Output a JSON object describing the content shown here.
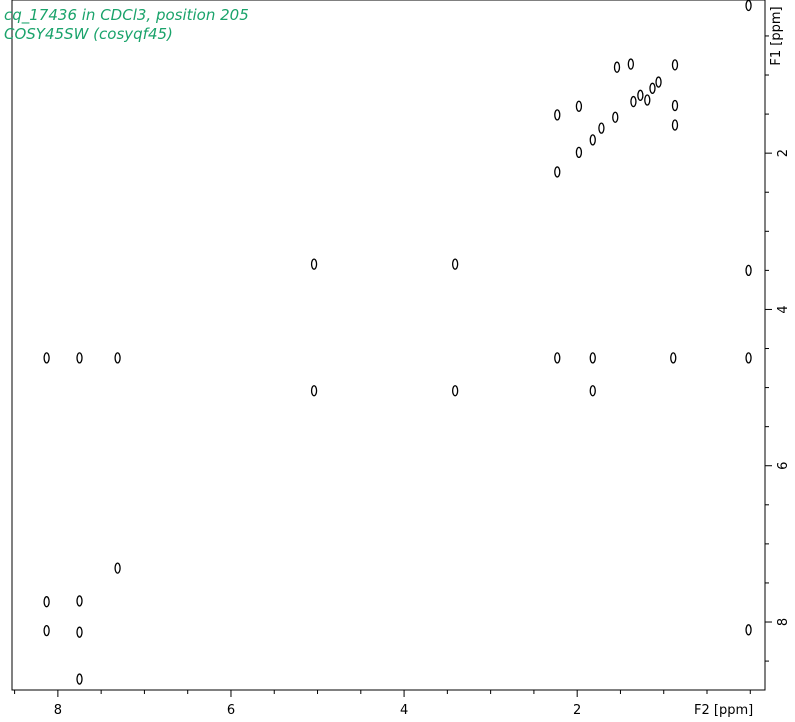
{
  "chart_data": {
    "type": "scatter",
    "title": "cq_17436 in CDCl3, position 205",
    "subtitle": "COSY45SW (cosyqf45)",
    "x_label": "F2 [ppm]",
    "y_label": "F1 [ppm]",
    "color": "#000000",
    "xlim": [
      8.53,
      -0.17
    ],
    "ylim": [
      0.04,
      8.87
    ],
    "xticks": [
      2,
      4,
      6,
      8
    ],
    "yticks": [
      2,
      4,
      6,
      8
    ],
    "xminorticks": [
      0,
      0.5,
      1,
      1.5,
      2.5,
      3,
      3.5,
      4.5,
      5,
      5.5,
      6.5,
      7,
      7.5,
      8.5
    ],
    "yminorticks": [
      0.5,
      1,
      1.5,
      2.5,
      3,
      3.5,
      4.5,
      5,
      5.5,
      6.5,
      7,
      7.5,
      8.5
    ],
    "x": [
      0.02,
      0.02,
      0.02,
      0.02,
      8.13,
      7.75,
      7.31,
      5.04,
      3.41,
      5.04,
      3.41,
      2.23,
      1.82,
      0.89,
      1.82,
      7.31,
      8.13,
      7.75,
      8.13,
      7.75,
      7.75,
      2.23,
      2.23,
      1.98,
      1.98,
      1.82,
      1.72,
      1.56,
      1.54,
      1.38,
      1.27,
      1.13,
      1.06,
      0.87,
      0.87,
      0.87,
      1.35,
      1.19
    ],
    "values": [
      0.11,
      3.5,
      4.62,
      8.1,
      4.62,
      4.62,
      4.62,
      3.42,
      3.42,
      5.04,
      5.04,
      4.62,
      4.62,
      4.62,
      5.04,
      7.31,
      7.74,
      7.73,
      8.11,
      8.13,
      8.73,
      2.24,
      1.51,
      1.4,
      1.99,
      1.83,
      1.68,
      1.54,
      0.9,
      0.86,
      1.26,
      1.17,
      1.09,
      0.87,
      1.39,
      1.64,
      1.34,
      1.32
    ]
  }
}
